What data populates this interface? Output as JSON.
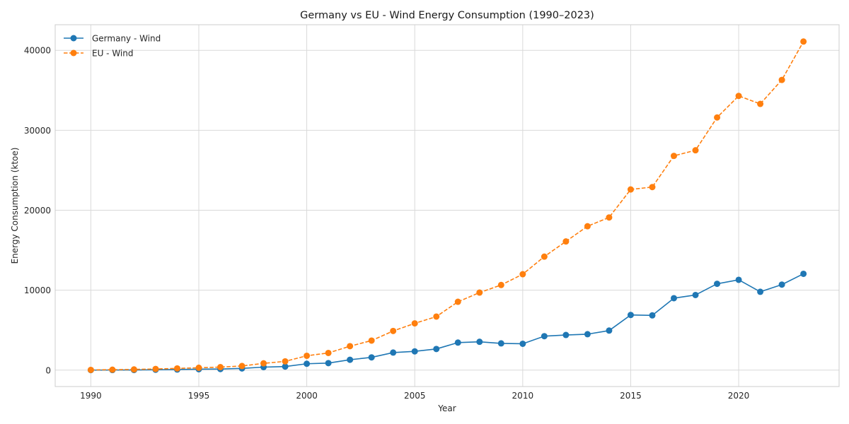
{
  "chart_data": {
    "type": "line",
    "title": "Germany vs EU - Wind Energy Consumption (1990–2023)",
    "xlabel": "Year",
    "ylabel": "Energy Consumption (ktoe)",
    "xlim": [
      1988.35,
      2024.65
    ],
    "ylim": [
      -2050,
      43200
    ],
    "x_ticks": [
      1990,
      1995,
      2000,
      2005,
      2010,
      2015,
      2020
    ],
    "y_ticks": [
      0,
      10000,
      20000,
      30000,
      40000
    ],
    "grid": true,
    "legend_position": "top-left",
    "x": [
      1990,
      1991,
      1992,
      1993,
      1994,
      1995,
      1996,
      1997,
      1998,
      1999,
      2000,
      2001,
      2002,
      2003,
      2004,
      2005,
      2006,
      2007,
      2008,
      2009,
      2010,
      2011,
      2012,
      2013,
      2014,
      2015,
      2016,
      2017,
      2018,
      2019,
      2020,
      2021,
      2022,
      2023
    ],
    "series": [
      {
        "name": "Germany - Wind",
        "color": "#1f77b4",
        "line_style": "solid",
        "values": [
          5,
          15,
          20,
          50,
          80,
          120,
          140,
          220,
          380,
          450,
          800,
          880,
          1300,
          1600,
          2200,
          2350,
          2650,
          3450,
          3550,
          3350,
          3300,
          4250,
          4400,
          4500,
          4950,
          6900,
          6850,
          9000,
          9400,
          10800,
          11300,
          9800,
          10700,
          12050
        ]
      },
      {
        "name": "EU - Wind",
        "color": "#ff7f0e",
        "line_style": "dashed",
        "values": [
          30,
          60,
          90,
          150,
          220,
          300,
          380,
          520,
          850,
          1100,
          1800,
          2150,
          3000,
          3700,
          4900,
          5850,
          6700,
          8550,
          9700,
          10650,
          12000,
          14200,
          16100,
          18000,
          19100,
          22600,
          22900,
          26800,
          27500,
          31600,
          34300,
          33300,
          36300,
          41100
        ]
      }
    ]
  }
}
